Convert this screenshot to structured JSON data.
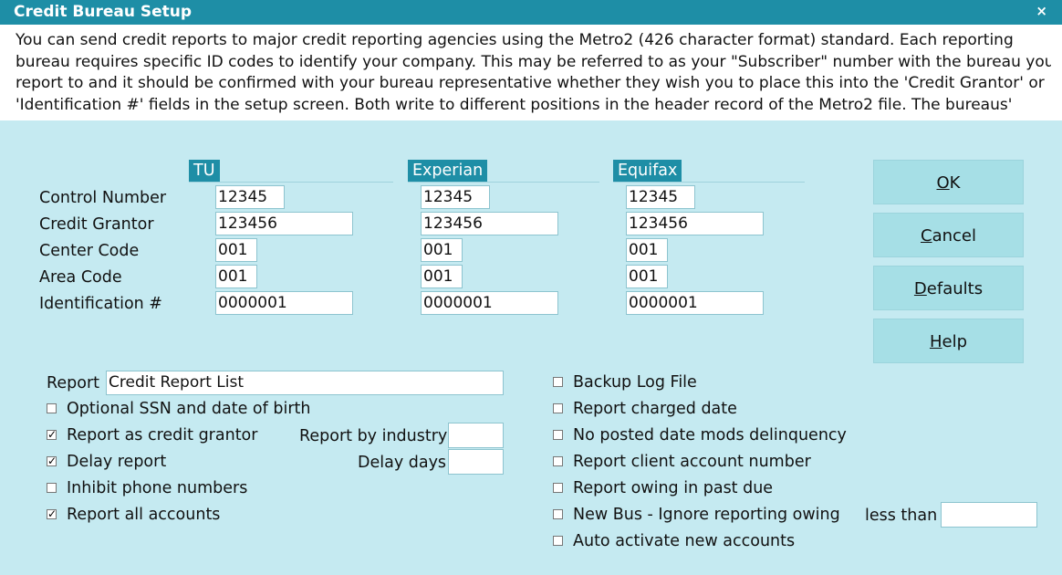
{
  "window": {
    "title": "Credit Bureau Setup",
    "close_glyph": "×"
  },
  "info_lines": [
    "You can send credit reports to major credit reporting agencies using the Metro2 (426 character format) standard. Each reporting",
    "bureau requires specific ID codes to identify your company. This may be referred to as your \"Subscriber\" number with the bureau you",
    "report to and it should be confirmed with your bureau representative whether they wish you to place this into the 'Credit Grantor' or",
    "'Identification #' fields in the setup screen. Both write to different positions in the header record of the Metro2 file.  The bureaus'"
  ],
  "row_labels": [
    "Control Number",
    "Credit Grantor",
    "Center Code",
    "Area Code",
    "Identification #"
  ],
  "bureaus": [
    {
      "name": "TU",
      "control_number": "12345",
      "credit_grantor": "123456",
      "center_code": "001",
      "area_code": "001",
      "identification": "0000001"
    },
    {
      "name": "Experian",
      "control_number": "12345",
      "credit_grantor": "123456",
      "center_code": "001",
      "area_code": "001",
      "identification": "0000001"
    },
    {
      "name": "Equifax",
      "control_number": "12345",
      "credit_grantor": "123456",
      "center_code": "001",
      "area_code": "001",
      "identification": "0000001"
    }
  ],
  "buttons": {
    "ok": {
      "mnemonic": "O",
      "rest": "K"
    },
    "cancel": {
      "mnemonic": "C",
      "rest": "ancel"
    },
    "defaults": {
      "mnemonic": "D",
      "rest": "efaults"
    },
    "help": {
      "mnemonic": "H",
      "rest": "elp"
    }
  },
  "report": {
    "label": "Report",
    "value": "Credit Report List"
  },
  "left_options": [
    {
      "label": "Optional SSN and date of birth",
      "checked": false
    },
    {
      "label": "Report as credit grantor",
      "checked": true
    },
    {
      "label": "Delay report",
      "checked": true
    },
    {
      "label": "Inhibit phone numbers",
      "checked": false
    },
    {
      "label": "Report all accounts",
      "checked": true
    }
  ],
  "report_by_industry": {
    "label": "Report by industry",
    "value": ""
  },
  "delay_days": {
    "label": "Delay days",
    "value": ""
  },
  "right_options": [
    {
      "label": "Backup Log File",
      "checked": false
    },
    {
      "label": "Report charged date",
      "checked": false
    },
    {
      "label": "No posted date mods delinquency",
      "checked": false
    },
    {
      "label": "Report client account number",
      "checked": false
    },
    {
      "label": "Report owing in past due",
      "checked": false
    },
    {
      "label": "New Bus - Ignore reporting owing",
      "checked": false
    },
    {
      "label": "Auto activate new accounts",
      "checked": false
    }
  ],
  "less_than": {
    "label": "less than",
    "value": ""
  },
  "check_glyph": "✓",
  "colors": {
    "title_bar": "#1e8ea6",
    "panel": "#c5eaf1",
    "button": "#a6dfe6"
  }
}
